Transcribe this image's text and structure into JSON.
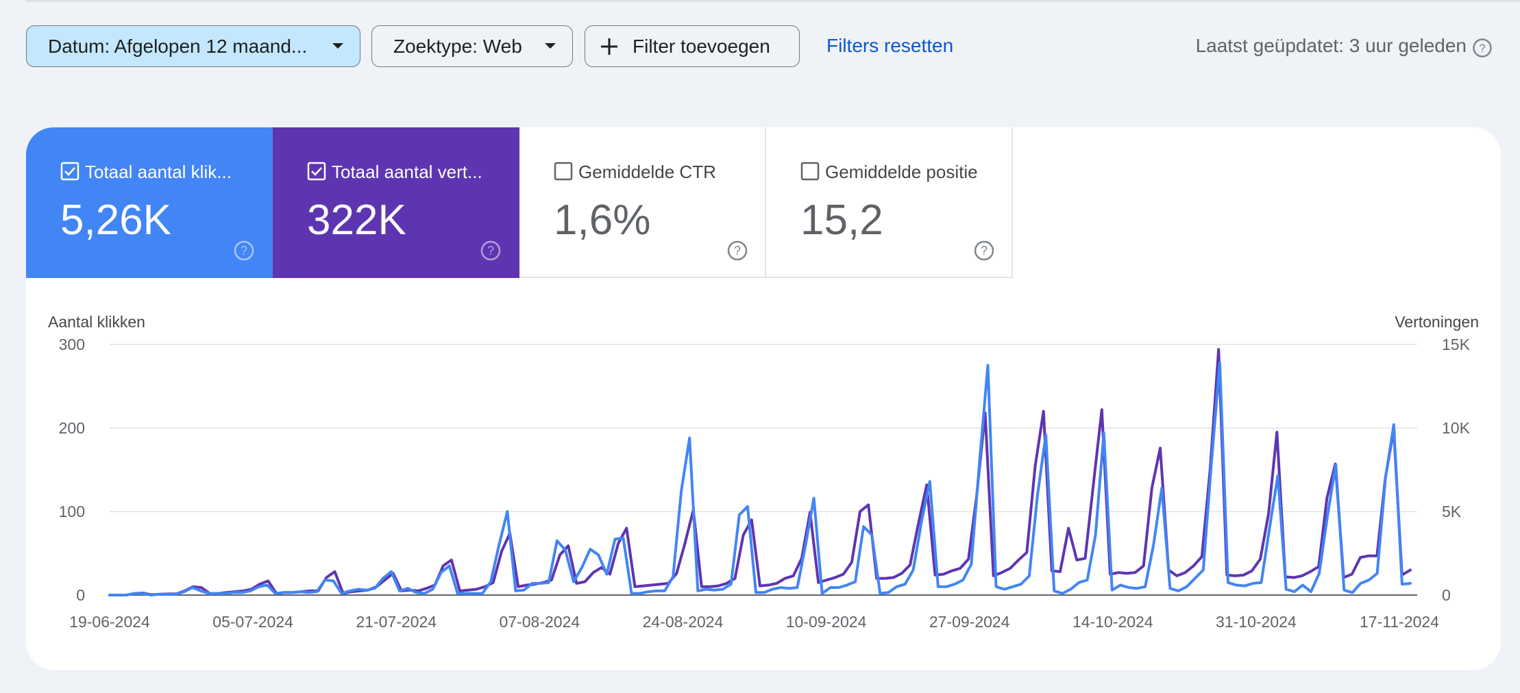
{
  "filters": {
    "date_label": "Datum: Afgelopen 12 maand...",
    "type_label": "Zoektype: Web",
    "add_label": "Filter toevoegen",
    "reset_label": "Filters resetten",
    "updated_label": "Laatst geüpdatet: 3 uur geleden"
  },
  "metrics": [
    {
      "label": "Totaal aantal klik...",
      "value": "5,26K",
      "checked": true,
      "color": "#4285f4"
    },
    {
      "label": "Totaal aantal vert...",
      "value": "322K",
      "checked": true,
      "color": "#5e35b1"
    },
    {
      "label": "Gemiddelde CTR",
      "value": "1,6%",
      "checked": false
    },
    {
      "label": "Gemiddelde positie",
      "value": "15,2",
      "checked": false
    }
  ],
  "chart_data": {
    "type": "line",
    "ylabel_left": "Aantal klikken",
    "ylabel_right": "Vertoningen",
    "y_left_ticks": [
      "0",
      "100",
      "200",
      "300"
    ],
    "y_right_ticks": [
      "0",
      "5K",
      "10K",
      "15K"
    ],
    "ylim_left": [
      0,
      300
    ],
    "ylim_right": [
      0,
      15000
    ],
    "x_tick_labels": [
      "19-06-2024",
      "05-07-2024",
      "21-07-2024",
      "07-08-2024",
      "24-08-2024",
      "10-09-2024",
      "27-09-2024",
      "14-10-2024",
      "31-10-2024",
      "17-11-2024"
    ],
    "grid": true,
    "series": [
      {
        "axis": "left",
        "color": "#4285f4",
        "values": [
          0,
          0,
          0,
          2,
          2,
          0,
          1,
          1,
          1,
          4,
          9,
          5,
          2,
          2,
          2,
          3,
          3,
          5,
          10,
          12,
          2,
          3,
          3,
          4,
          3,
          4,
          18,
          17,
          2,
          5,
          7,
          6,
          8,
          20,
          28,
          5,
          8,
          3,
          2,
          7,
          27,
          35,
          2,
          2,
          2,
          2,
          16,
          60,
          100,
          5,
          6,
          14,
          14,
          15,
          65,
          54,
          16,
          33,
          55,
          48,
          25,
          67,
          68,
          2,
          2,
          4,
          5,
          5,
          22,
          125,
          188,
          5,
          7,
          6,
          7,
          13,
          96,
          106,
          3,
          3,
          7,
          9,
          8,
          9,
          60,
          116,
          2,
          9,
          9,
          12,
          16,
          82,
          72,
          2,
          3,
          10,
          13,
          30,
          88,
          136,
          10,
          10,
          13,
          18,
          37,
          160,
          275,
          10,
          7,
          10,
          13,
          23,
          120,
          192,
          5,
          2,
          7,
          15,
          18,
          72,
          194,
          6,
          12,
          9,
          8,
          10,
          60,
          128,
          8,
          5,
          10,
          20,
          30,
          160,
          278,
          15,
          12,
          11,
          14,
          15,
          80,
          143,
          7,
          4,
          12,
          4,
          26,
          95,
          156,
          6,
          3,
          14,
          18,
          26,
          140,
          204,
          13,
          14
        ]
      },
      {
        "axis": "right",
        "color": "#5e35b1",
        "values": [
          0,
          0,
          0,
          100,
          125,
          25,
          50,
          75,
          75,
          250,
          500,
          450,
          100,
          100,
          150,
          200,
          250,
          350,
          650,
          850,
          100,
          150,
          150,
          200,
          250,
          250,
          1050,
          1400,
          100,
          200,
          250,
          300,
          500,
          900,
          1300,
          250,
          300,
          250,
          400,
          600,
          1750,
          2100,
          250,
          300,
          350,
          500,
          750,
          2600,
          3700,
          500,
          600,
          650,
          750,
          900,
          2400,
          2950,
          700,
          800,
          1350,
          1650,
          1250,
          3100,
          4000,
          500,
          550,
          600,
          650,
          700,
          1300,
          3100,
          5100,
          500,
          500,
          550,
          700,
          1000,
          3600,
          4500,
          550,
          600,
          700,
          1000,
          1150,
          2200,
          4950,
          750,
          900,
          1050,
          1250,
          1950,
          5000,
          5400,
          1000,
          1000,
          1050,
          1300,
          1800,
          4300,
          6600,
          1200,
          1250,
          1450,
          1600,
          2150,
          6000,
          10900,
          1150,
          1350,
          1600,
          2100,
          2550,
          7700,
          11000,
          1450,
          1400,
          4000,
          2100,
          2200,
          6700,
          11100,
          1250,
          1350,
          1300,
          1350,
          1750,
          6400,
          8800,
          1500,
          1150,
          1350,
          1750,
          2300,
          7600,
          14700,
          1200,
          1150,
          1200,
          1450,
          2150,
          4900,
          9750,
          1100,
          1050,
          1150,
          1400,
          1700,
          5800,
          7850,
          1050,
          1250,
          2250,
          2350,
          2350,
          7000,
          9900,
          1200,
          1500
        ]
      }
    ]
  }
}
